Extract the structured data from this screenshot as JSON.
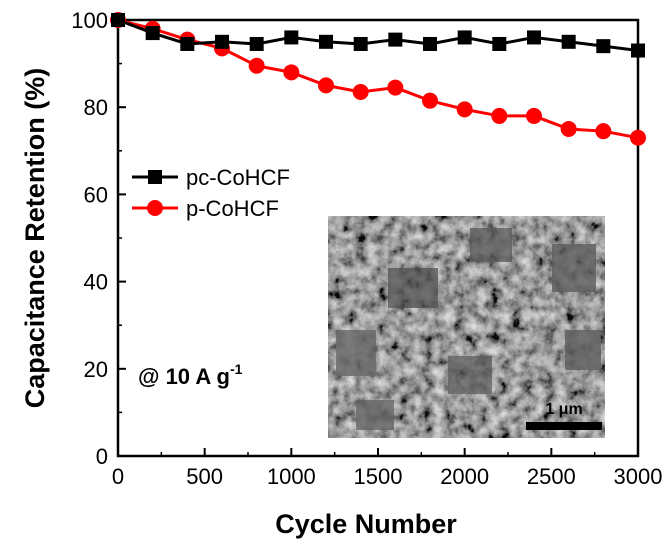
{
  "chart_data": {
    "type": "line",
    "xlabel": "Cycle Number",
    "ylabel": "Capacitance Retention (%)",
    "xlim": [
      0,
      3000
    ],
    "ylim": [
      0,
      100
    ],
    "x_ticks": [
      "0",
      "500",
      "1000",
      "1500",
      "2000",
      "2500",
      "3000"
    ],
    "y_ticks": [
      "0",
      "20",
      "40",
      "60",
      "80",
      "100"
    ],
    "grid": false,
    "legend_position": "left-middle",
    "x": [
      0,
      200,
      400,
      600,
      800,
      1000,
      1200,
      1400,
      1600,
      1800,
      2000,
      2200,
      2400,
      2600,
      2800,
      3000
    ],
    "series": [
      {
        "name": "pc-CoHCF",
        "color": "#000000",
        "marker": "square",
        "values": [
          100,
          97,
          94.5,
          95,
          94.5,
          96,
          95,
          94.5,
          95.5,
          94.5,
          96,
          94.5,
          96,
          95,
          94,
          93
        ]
      },
      {
        "name": "p-CoHCF",
        "color": "#ff0000",
        "marker": "circle",
        "values": [
          100,
          98,
          95.5,
          93.5,
          89.5,
          88,
          85,
          83.5,
          84.5,
          81.5,
          79.5,
          78,
          78,
          75,
          74.5,
          73
        ]
      }
    ],
    "annotation": {
      "prefix": "@ 10 A g",
      "superscript": "-1"
    },
    "inset": {
      "type": "SEM image",
      "scale_bar_label": "1 μm"
    }
  }
}
